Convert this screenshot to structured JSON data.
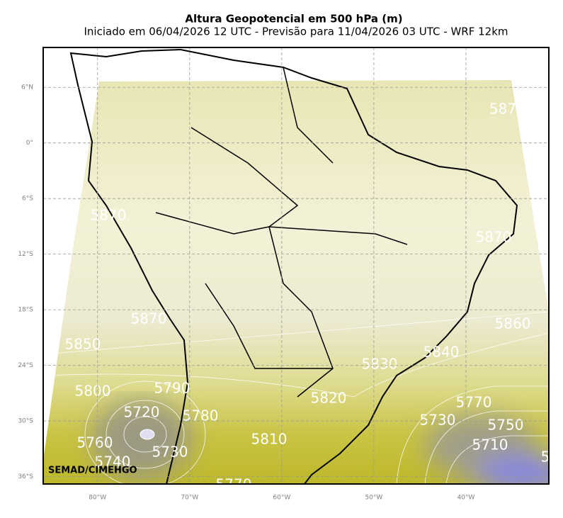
{
  "title": "Altura Geopotencial em 500 hPa (m)",
  "subtitle": "Iniciado em 06/04/2026 12 UTC - Previsão para 11/04/2026 03 UTC - WRF 12km",
  "lon_ticks": [
    {
      "value": -80,
      "label": "80°W"
    },
    {
      "value": -70,
      "label": "70°W"
    },
    {
      "value": -60,
      "label": "60°W"
    },
    {
      "value": -50,
      "label": "50°W"
    },
    {
      "value": -40,
      "label": "40°W"
    }
  ],
  "lat_ticks": [
    {
      "value": 6,
      "label": "6°N"
    },
    {
      "value": 0,
      "label": "0°"
    },
    {
      "value": -6,
      "label": "6°S"
    },
    {
      "value": -12,
      "label": "12°S"
    },
    {
      "value": -18,
      "label": "18°S"
    },
    {
      "value": -24,
      "label": "24°S"
    },
    {
      "value": -30,
      "label": "30°S"
    },
    {
      "value": -36,
      "label": "36°S"
    }
  ],
  "lon_range": [
    -85.9,
    -31
  ],
  "lat_range": [
    -36.8,
    10.3
  ],
  "contour_labels": [
    "587",
    5870,
    5870,
    5870,
    5860,
    5850,
    5840,
    5830,
    5800,
    5790,
    5820,
    5720,
    5780,
    5770,
    5730,
    5750,
    5810,
    5760,
    5710,
    5730,
    5740,
    5770,
    "5"
  ],
  "credit": "SEMAD/CIMEHGO"
}
